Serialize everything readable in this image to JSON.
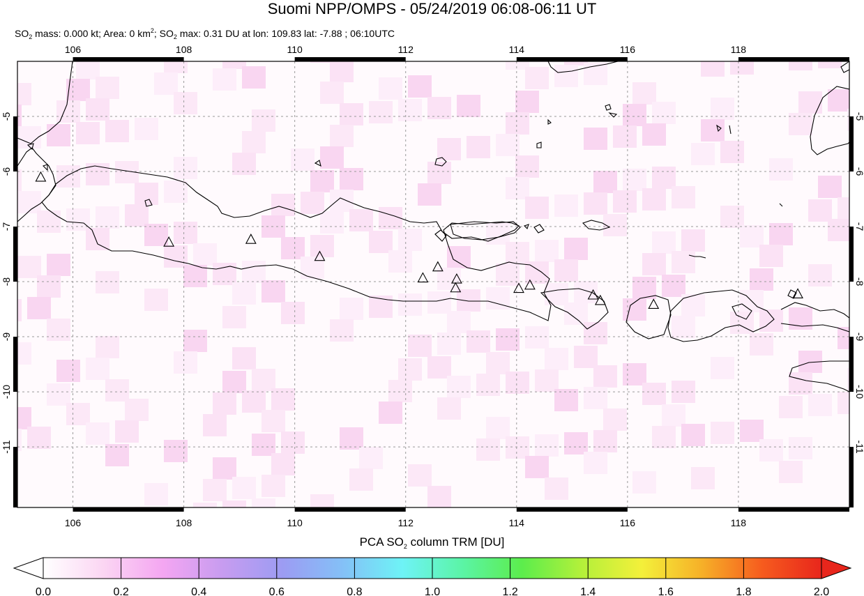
{
  "title": "Suomi NPP/OMPS - 05/24/2019 06:08-06:11 UT",
  "subtitle": {
    "so2_prefix": "SO",
    "so2_sub": "2",
    "mass_text": " mass: 0.000 kt; Area: 0 km",
    "area_sup": "2",
    "sep": "; SO",
    "so2_sub2": "2",
    "max_text": " max: 0.31 DU at lon: 109.83 lat: -7.88 ; 06:10UTC"
  },
  "map": {
    "lon_range": [
      105,
      120
    ],
    "lat_range": [
      -12.1,
      -4.0
    ],
    "lon_ticks": [
      106,
      108,
      110,
      112,
      114,
      116,
      118
    ],
    "lon_tick_labels": [
      "106",
      "108",
      "110",
      "112",
      "114",
      "116",
      "118"
    ],
    "lat_ticks": [
      -5,
      -6,
      -7,
      -8,
      -9,
      -10,
      -11
    ],
    "lat_tick_labels": [
      "-5",
      "-6",
      "-7",
      "-8",
      "-9",
      "-10",
      "-11"
    ],
    "volcanoes": [
      {
        "lon": 105.42,
        "lat": -6.1
      },
      {
        "lon": 107.73,
        "lat": -7.28
      },
      {
        "lon": 109.21,
        "lat": -7.23
      },
      {
        "lon": 110.45,
        "lat": -7.54
      },
      {
        "lon": 112.31,
        "lat": -7.93
      },
      {
        "lon": 112.58,
        "lat": -7.73
      },
      {
        "lon": 112.92,
        "lat": -7.95
      },
      {
        "lon": 112.9,
        "lat": -8.11
      },
      {
        "lon": 114.04,
        "lat": -8.12
      },
      {
        "lon": 114.24,
        "lat": -8.06
      },
      {
        "lon": 115.38,
        "lat": -8.24
      },
      {
        "lon": 115.51,
        "lat": -8.34
      },
      {
        "lon": 116.47,
        "lat": -8.41
      },
      {
        "lon": 119.07,
        "lat": -8.22
      }
    ]
  },
  "colorbar": {
    "title_prefix": "PCA SO",
    "title_sub": "2",
    "title_suffix": " column TRM [DU]",
    "range": [
      0.0,
      2.0
    ],
    "tick_values": [
      0.0,
      0.2,
      0.4,
      0.6,
      0.8,
      1.0,
      1.2,
      1.4,
      1.6,
      1.8,
      2.0
    ],
    "tick_labels": [
      "0.0",
      "0.2",
      "0.4",
      "0.6",
      "0.8",
      "1.0",
      "1.2",
      "1.4",
      "1.6",
      "1.8",
      "2.0"
    ],
    "colors": [
      "#ffffff",
      "#fbd6f3",
      "#f4a6f2",
      "#c79cf0",
      "#9c9cf3",
      "#84c0f7",
      "#6ef3f6",
      "#5bf4a6",
      "#5ced4c",
      "#b4f03a",
      "#f4f03a",
      "#f6b028",
      "#f65c1e",
      "#e8261c"
    ]
  }
}
